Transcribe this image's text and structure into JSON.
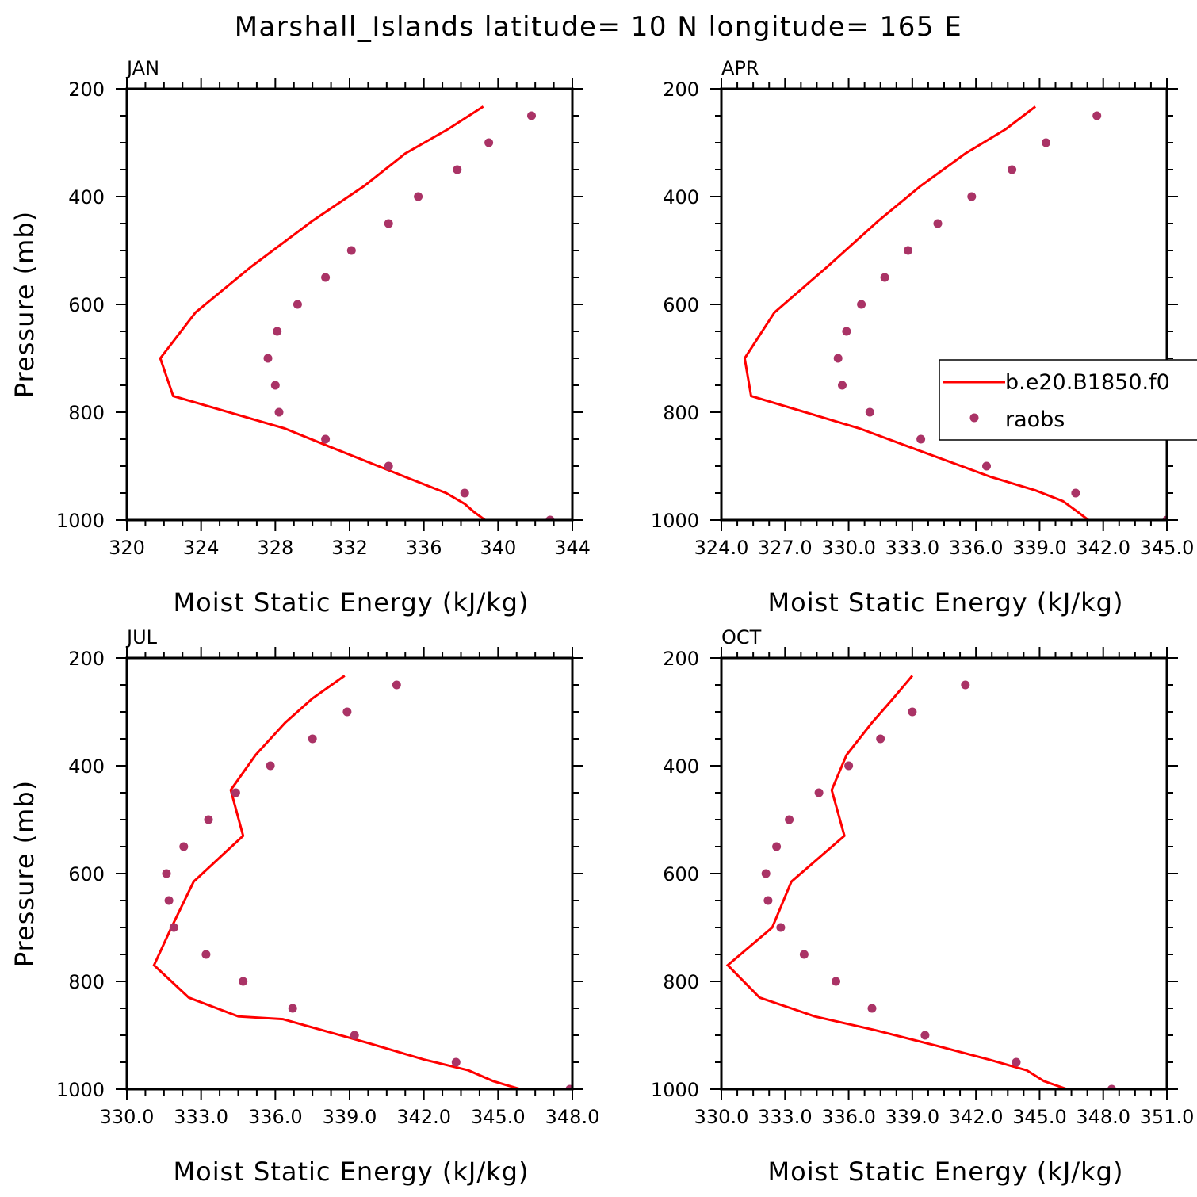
{
  "title": "Marshall_Islands  latitude= 10 N longitude= 165 E",
  "colors": {
    "model_line": "#ff0000",
    "obs_marker": "#aa3366",
    "axes": "#000000"
  },
  "legend": {
    "model_label": "b.e20.B1850.f0",
    "obs_label": "raobs"
  },
  "chart_data": [
    {
      "type": "line",
      "panel": "JAN",
      "xlabel": "Moist Static Energy (kJ/kg)",
      "ylabel": "Pressure (mb)",
      "xlim": [
        320,
        344
      ],
      "ylim": [
        1000,
        200
      ],
      "y_reversed": true,
      "xticks": [
        320,
        324,
        328,
        332,
        336,
        340,
        344
      ],
      "xtick_labels": [
        "320",
        "324",
        "328",
        "332",
        "336",
        "340",
        "344"
      ],
      "yticks": [
        200,
        400,
        600,
        800,
        1000
      ],
      "ytick_labels": [
        "200",
        "400",
        "600",
        "800",
        "1000"
      ],
      "series": [
        {
          "name": "b.e20.B1850.f0",
          "style": "line",
          "x": [
            339.3,
            338.7,
            338.2,
            337.2,
            335.0,
            331.0,
            328.5,
            322.5,
            321.8,
            323.7,
            326.7,
            330.0,
            332.8,
            335.0,
            337.3,
            339.2
          ],
          "y": [
            1000,
            985,
            970,
            950,
            920,
            865,
            830,
            770,
            700,
            615,
            530,
            445,
            380,
            320,
            275,
            233
          ]
        },
        {
          "name": "raobs",
          "style": "markers",
          "x": [
            342.8,
            338.2,
            334.1,
            330.7,
            328.2,
            328.0,
            327.6,
            328.1,
            329.2,
            330.7,
            332.1,
            334.1,
            335.7,
            337.8,
            339.5,
            341.8
          ],
          "y": [
            1000,
            950,
            900,
            850,
            800,
            750,
            700,
            650,
            600,
            550,
            500,
            450,
            400,
            350,
            300,
            250
          ]
        }
      ]
    },
    {
      "type": "line",
      "panel": "APR",
      "xlabel": "Moist Static Energy (kJ/kg)",
      "ylabel": "",
      "xlim": [
        324,
        345
      ],
      "ylim": [
        1000,
        200
      ],
      "y_reversed": true,
      "xticks": [
        324,
        327,
        330,
        333,
        336,
        339,
        342,
        345
      ],
      "xtick_labels": [
        "324.0",
        "327.0",
        "330.0",
        "333.0",
        "336.0",
        "339.0",
        "342.0",
        "345.0"
      ],
      "yticks": [
        200,
        400,
        600,
        800,
        1000
      ],
      "ytick_labels": [
        "200",
        "400",
        "600",
        "800",
        "1000"
      ],
      "series": [
        {
          "name": "b.e20.B1850.f0",
          "style": "line",
          "x": [
            341.3,
            340.8,
            340.1,
            338.8,
            336.7,
            332.9,
            330.5,
            325.4,
            325.1,
            326.5,
            329.0,
            331.4,
            333.4,
            335.5,
            337.4,
            338.8
          ],
          "y": [
            1000,
            985,
            965,
            945,
            920,
            865,
            830,
            770,
            700,
            615,
            530,
            445,
            380,
            320,
            275,
            233
          ]
        },
        {
          "name": "raobs",
          "style": "markers",
          "x": [
            345.0,
            340.7,
            336.5,
            333.4,
            331.0,
            329.7,
            329.5,
            329.9,
            330.6,
            331.7,
            332.8,
            334.2,
            335.8,
            337.7,
            339.3,
            341.7
          ],
          "y": [
            1000,
            950,
            900,
            850,
            800,
            750,
            700,
            650,
            600,
            550,
            500,
            450,
            400,
            350,
            300,
            250
          ]
        }
      ]
    },
    {
      "type": "line",
      "panel": "JUL",
      "xlabel": "Moist Static Energy (kJ/kg)",
      "ylabel": "Pressure (mb)",
      "xlim": [
        330,
        348
      ],
      "ylim": [
        1000,
        200
      ],
      "y_reversed": true,
      "xticks": [
        330,
        333,
        336,
        339,
        342,
        345,
        348
      ],
      "xtick_labels": [
        "330.0",
        "333.0",
        "336.0",
        "339.0",
        "342.0",
        "345.0",
        "348.0"
      ],
      "yticks": [
        200,
        400,
        600,
        800,
        1000
      ],
      "ytick_labels": [
        "200",
        "400",
        "600",
        "800",
        "1000"
      ],
      "series": [
        {
          "name": "b.e20.B1850.f0",
          "style": "line",
          "x": [
            345.9,
            344.8,
            343.8,
            342.0,
            339.8,
            336.3,
            334.5,
            332.5,
            331.1,
            331.8,
            332.7,
            334.7,
            334.2,
            335.2,
            336.4,
            337.5,
            338.8
          ],
          "y": [
            1000,
            985,
            965,
            945,
            915,
            870,
            865,
            830,
            770,
            700,
            615,
            530,
            445,
            380,
            320,
            275,
            233
          ]
        },
        {
          "name": "raobs",
          "style": "markers",
          "x": [
            347.9,
            343.3,
            339.2,
            336.7,
            334.7,
            333.2,
            331.9,
            331.7,
            331.6,
            332.3,
            333.3,
            334.4,
            335.8,
            337.5,
            338.9,
            340.9
          ],
          "y": [
            1000,
            950,
            900,
            850,
            800,
            750,
            700,
            650,
            600,
            550,
            500,
            450,
            400,
            350,
            300,
            250
          ]
        }
      ]
    },
    {
      "type": "line",
      "panel": "OCT",
      "xlabel": "Moist Static Energy (kJ/kg)",
      "ylabel": "",
      "xlim": [
        330,
        351
      ],
      "ylim": [
        1000,
        200
      ],
      "y_reversed": true,
      "xticks": [
        330,
        333,
        336,
        339,
        342,
        345,
        348,
        351
      ],
      "xtick_labels": [
        "330.0",
        "333.0",
        "336.0",
        "339.0",
        "342.0",
        "345.0",
        "348.0",
        "351.0"
      ],
      "yticks": [
        200,
        400,
        600,
        800,
        1000
      ],
      "ytick_labels": [
        "200",
        "400",
        "600",
        "800",
        "1000"
      ],
      "series": [
        {
          "name": "b.e20.B1850.f0",
          "style": "line",
          "x": [
            346.3,
            345.2,
            344.4,
            342.6,
            340.2,
            337.2,
            334.4,
            333.3,
            331.8,
            330.3,
            332.4,
            333.3,
            335.8,
            335.2,
            335.9,
            337.1,
            338.1,
            339.0
          ],
          "y": [
            1000,
            985,
            965,
            945,
            920,
            890,
            865,
            850,
            830,
            770,
            700,
            615,
            530,
            445,
            380,
            320,
            275,
            233
          ]
        },
        {
          "name": "raobs",
          "style": "markers",
          "x": [
            348.4,
            343.9,
            339.6,
            337.1,
            335.4,
            333.9,
            332.8,
            332.2,
            332.1,
            332.6,
            333.2,
            334.6,
            336.0,
            337.5,
            339.0,
            341.5
          ],
          "y": [
            1000,
            950,
            900,
            850,
            800,
            750,
            700,
            650,
            600,
            550,
            500,
            450,
            400,
            350,
            300,
            250
          ]
        }
      ]
    }
  ]
}
